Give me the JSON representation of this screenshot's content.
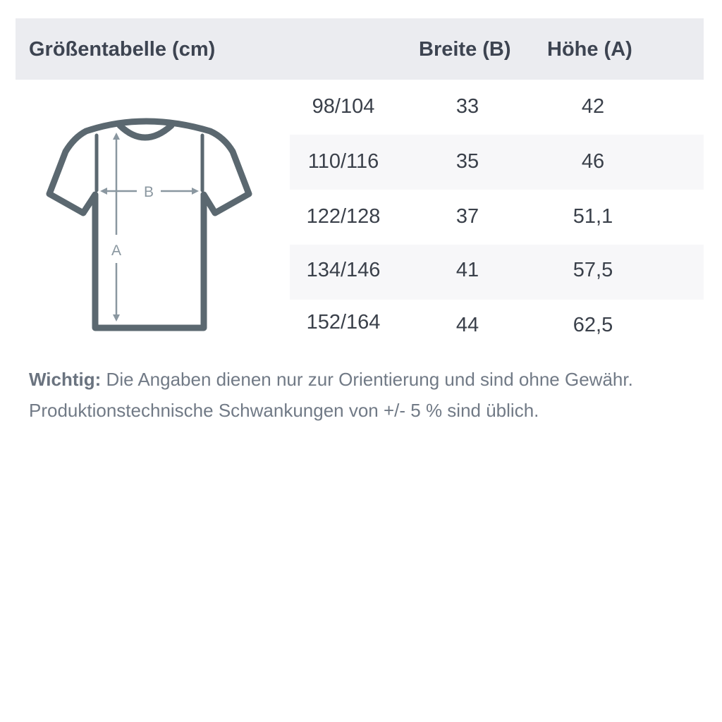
{
  "header": {
    "title": "Größentabelle (cm)",
    "col_width": "Breite (B)",
    "col_height": "Höhe (A)"
  },
  "rows": [
    {
      "size": "98/104",
      "width": "33",
      "height": "42"
    },
    {
      "size": "110/116",
      "width": "35",
      "height": "46"
    },
    {
      "size": "122/128",
      "width": "37",
      "height": "51,1"
    },
    {
      "size": "134/146",
      "width": "41",
      "height": "57,5"
    },
    {
      "size": "152/164",
      "width": "44",
      "height": "62,5"
    }
  ],
  "diagram": {
    "label_width": "B",
    "label_height": "A",
    "outline_color": "#5b6870",
    "measure_color": "#8a97a0"
  },
  "note": {
    "label": "Wichtig:",
    "text": " Die Angaben dienen nur zur Orientierung und sind ohne Gewähr.",
    "text2": "Produktionstechnische Schwankungen von +/- 5 % sind üblich."
  }
}
